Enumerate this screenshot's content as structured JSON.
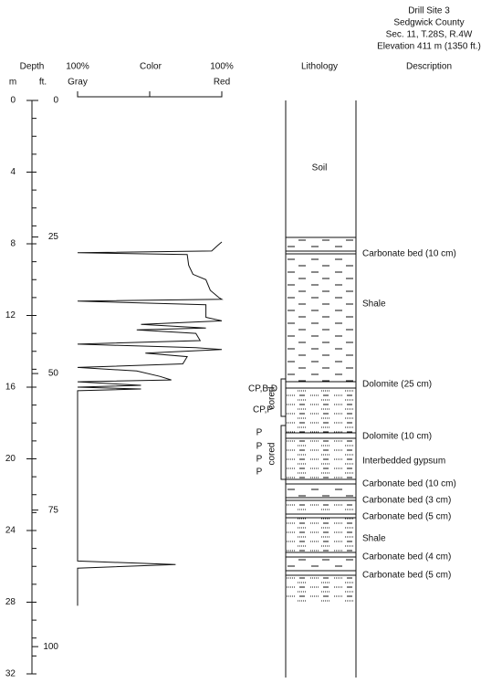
{
  "header": {
    "lines": [
      "Drill Site 3",
      "Sedgwick County",
      "Sec. 11, T.28S, R.4W",
      "Elevation 411 m (1350 ft.)"
    ]
  },
  "columns": {
    "depth": "Depth",
    "m": "m",
    "ft": "ft.",
    "gray_pct": "100%",
    "gray": "Gray",
    "color": "Color",
    "red_pct": "100%",
    "red": "Red",
    "lithology": "Lithology",
    "description": "Description"
  },
  "depth_axis": {
    "m_ticks": [
      0,
      4,
      8,
      12,
      16,
      20,
      24,
      28,
      32
    ],
    "ft_ticks": [
      0,
      25,
      50,
      75,
      100
    ]
  },
  "color_curve": {
    "depth_m": [
      7.9,
      8.1,
      8.4,
      8.5,
      8.6,
      9.2,
      9.7,
      10.0,
      10.6,
      11.0,
      11.1,
      11.2,
      11.4,
      12.1,
      12.3,
      12.5,
      12.7,
      12.8,
      13.0,
      13.4,
      13.6,
      13.8,
      13.9,
      14.1,
      14.3,
      14.7,
      14.9,
      15.1,
      15.4,
      15.6,
      15.7,
      15.9,
      16.0,
      16.1,
      16.2,
      25.7,
      25.9,
      26.1,
      28.2
    ],
    "red_percent": [
      100,
      97,
      93,
      0,
      76,
      77,
      80,
      89,
      92,
      98,
      100,
      0,
      89,
      89,
      100,
      44,
      89,
      41,
      82,
      85,
      0,
      82,
      100,
      47,
      76,
      73,
      0,
      41,
      57,
      65,
      0,
      44,
      0,
      44,
      0,
      0,
      68,
      0,
      0
    ]
  },
  "lithology": {
    "soil": "Soil"
  },
  "annotations": {
    "samples": [
      "CP,B,D",
      "CP,P",
      "P",
      "P",
      "P",
      "P"
    ],
    "cored": [
      "cored",
      "cored"
    ]
  },
  "descriptions": [
    "Carbonate bed (10 cm)",
    "Shale",
    "Dolomite (25 cm)",
    "Dolomite (10 cm)",
    "Interbedded gypsum",
    "Carbonate bed (10 cm)",
    "Carbonate bed (3 cm)",
    "Carbonate bed (5 cm)",
    "Shale",
    "Carbonate bed (4 cm)",
    "Carbonate bed (5 cm)"
  ]
}
